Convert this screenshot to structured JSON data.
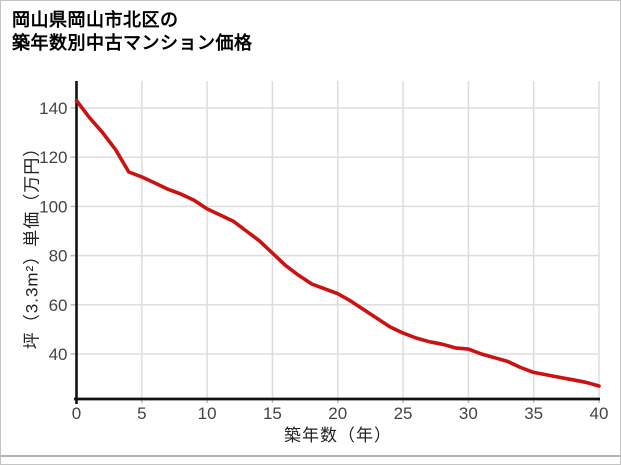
{
  "title": {
    "line1": "岡山県岡山市北区の",
    "line2": "築年数別中古マンション価格"
  },
  "colors": {
    "line": "#cc1111",
    "grid": "#dddddd",
    "axis": "#111111",
    "tick": "#bbbbbb",
    "tick_label": "#444444",
    "divider": "#b3b3b3"
  },
  "chart_data": {
    "type": "line",
    "title": "岡山県岡山市北区の築年数別中古マンション価格",
    "xlabel": "築年数（年）",
    "ylabel": "坪（3.3m²）単価（万円）",
    "x": [
      0,
      1,
      2,
      3,
      4,
      5,
      6,
      7,
      8,
      9,
      10,
      11,
      12,
      13,
      14,
      15,
      16,
      17,
      18,
      19,
      20,
      21,
      22,
      23,
      24,
      25,
      26,
      27,
      28,
      29,
      30,
      31,
      32,
      33,
      34,
      35,
      36,
      37,
      38,
      39,
      40
    ],
    "y": [
      143,
      136,
      130,
      123,
      114,
      112,
      109.5,
      107,
      105,
      102.5,
      99,
      96.5,
      94,
      90,
      86,
      81,
      76,
      72,
      68.5,
      66.5,
      64.5,
      61.5,
      58,
      54.5,
      51,
      48.5,
      46.5,
      45,
      44,
      42.5,
      42,
      40,
      38.5,
      37,
      34.5,
      32.5,
      31.5,
      30.5,
      29.5,
      28.5,
      27
    ],
    "xticks": [
      0,
      5,
      10,
      15,
      20,
      25,
      30,
      35,
      40
    ],
    "yticks": [
      40,
      60,
      80,
      100,
      120,
      140
    ],
    "xlim": [
      0,
      40
    ],
    "ylim": [
      21.7,
      151
    ],
    "grid": true,
    "legend": false
  }
}
